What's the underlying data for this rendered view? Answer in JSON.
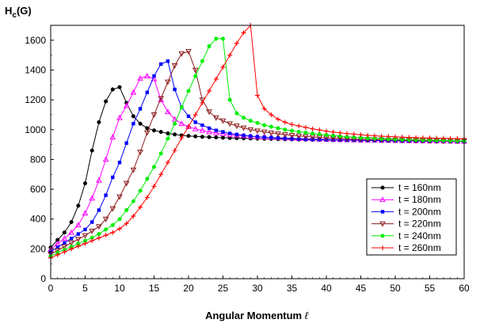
{
  "chart_data": {
    "type": "line",
    "ylabel_main": "H",
    "ylabel_sub": "c",
    "ylabel_suffix": "(G)",
    "xlabel_main": "Angular Momentum ",
    "xlabel_symbol": "ℓ",
    "xlim": [
      0,
      60
    ],
    "ylim": [
      0,
      1700
    ],
    "x_ticks": [
      0,
      5,
      10,
      15,
      20,
      25,
      30,
      35,
      40,
      45,
      50,
      55,
      60
    ],
    "y_ticks": [
      0,
      200,
      400,
      600,
      800,
      1000,
      1200,
      1400,
      1600
    ],
    "grid": false,
    "legend_position": "lower-right",
    "x": [
      0,
      1,
      2,
      3,
      4,
      5,
      6,
      7,
      8,
      9,
      10,
      11,
      12,
      13,
      14,
      15,
      16,
      17,
      18,
      19,
      20,
      21,
      22,
      23,
      24,
      25,
      26,
      27,
      28,
      29,
      30,
      31,
      32,
      33,
      34,
      35,
      36,
      37,
      38,
      39,
      40,
      41,
      42,
      43,
      44,
      45,
      46,
      47,
      48,
      49,
      50,
      51,
      52,
      53,
      54,
      55,
      56,
      57,
      58,
      59,
      60
    ],
    "series": [
      {
        "name": "t = 160nm",
        "color": "#000000",
        "marker": "circle",
        "values": [
          210,
          260,
          310,
          380,
          490,
          640,
          860,
          1050,
          1190,
          1270,
          1285,
          1180,
          1090,
          1040,
          1010,
          995,
          985,
          975,
          968,
          962,
          958,
          955,
          952,
          950,
          948,
          946,
          944,
          943,
          942,
          941,
          940,
          939,
          938,
          937,
          936,
          935,
          934,
          933,
          932,
          932,
          931,
          930,
          930,
          929,
          929,
          928,
          928,
          927,
          927,
          926,
          926,
          925,
          925,
          924,
          924,
          923,
          923,
          922,
          922,
          921,
          920
        ]
      },
      {
        "name": "t = 180nm",
        "color": "#ff00ff",
        "marker": "triangle-up",
        "values": [
          195,
          235,
          270,
          310,
          360,
          440,
          540,
          660,
          800,
          950,
          1080,
          1160,
          1250,
          1345,
          1360,
          1340,
          1200,
          1120,
          1070,
          1040,
          1020,
          1005,
          995,
          985,
          978,
          972,
          967,
          963,
          959,
          955,
          952,
          950,
          948,
          946,
          944,
          942,
          940,
          939,
          938,
          936,
          935,
          934,
          933,
          932,
          931,
          930,
          930,
          929,
          928,
          928,
          927,
          926,
          926,
          925,
          925,
          924,
          924,
          923,
          923,
          922,
          922
        ]
      },
      {
        "name": "t = 200nm",
        "color": "#0000ff",
        "marker": "square",
        "values": [
          180,
          210,
          240,
          270,
          300,
          330,
          380,
          460,
          560,
          680,
          780,
          910,
          1040,
          1140,
          1250,
          1360,
          1440,
          1460,
          1270,
          1150,
          1090,
          1050,
          1030,
          1010,
          995,
          985,
          975,
          968,
          962,
          957,
          953,
          950,
          947,
          944,
          942,
          940,
          938,
          936,
          935,
          934,
          933,
          932,
          931,
          930,
          929,
          928,
          928,
          927,
          926,
          926,
          925,
          925,
          924,
          924,
          923,
          923,
          922,
          922,
          921,
          921,
          920
        ]
      },
      {
        "name": "t = 220nm",
        "color": "#8b1a1a",
        "marker": "triangle-down",
        "values": [
          165,
          190,
          215,
          240,
          265,
          290,
          320,
          350,
          400,
          470,
          550,
          640,
          730,
          850,
          980,
          1100,
          1210,
          1320,
          1430,
          1510,
          1525,
          1400,
          1200,
          1120,
          1080,
          1060,
          1040,
          1025,
          1012,
          1000,
          992,
          985,
          978,
          972,
          967,
          962,
          958,
          954,
          951,
          948,
          945,
          943,
          941,
          939,
          937,
          935,
          934,
          933,
          932,
          931,
          930,
          929,
          928,
          927,
          926,
          926,
          925,
          924,
          924,
          923,
          923
        ]
      },
      {
        "name": "t = 240nm",
        "color": "#00ee00",
        "marker": "circle",
        "values": [
          150,
          175,
          195,
          215,
          235,
          255,
          275,
          300,
          330,
          360,
          400,
          460,
          520,
          590,
          670,
          750,
          840,
          940,
          1040,
          1150,
          1260,
          1360,
          1460,
          1560,
          1610,
          1610,
          1200,
          1110,
          1080,
          1060,
          1045,
          1030,
          1020,
          1010,
          1000,
          993,
          986,
          980,
          974,
          969,
          964,
          960,
          956,
          952,
          949,
          946,
          943,
          941,
          939,
          937,
          935,
          933,
          932,
          931,
          930,
          929,
          928,
          927,
          926,
          925,
          924
        ]
      },
      {
        "name": "t = 260nm",
        "color": "#ff0000",
        "marker": "plus",
        "values": [
          140,
          160,
          180,
          200,
          218,
          236,
          255,
          273,
          292,
          310,
          335,
          370,
          420,
          480,
          545,
          620,
          700,
          780,
          860,
          945,
          1020,
          1100,
          1180,
          1260,
          1340,
          1420,
          1500,
          1580,
          1650,
          1700,
          1230,
          1140,
          1100,
          1070,
          1050,
          1035,
          1025,
          1015,
          1005,
          998,
          990,
          984,
          979,
          974,
          970,
          966,
          962,
          959,
          956,
          954,
          952,
          950,
          948,
          946,
          945,
          944,
          943,
          942,
          941,
          940,
          940
        ]
      }
    ]
  }
}
